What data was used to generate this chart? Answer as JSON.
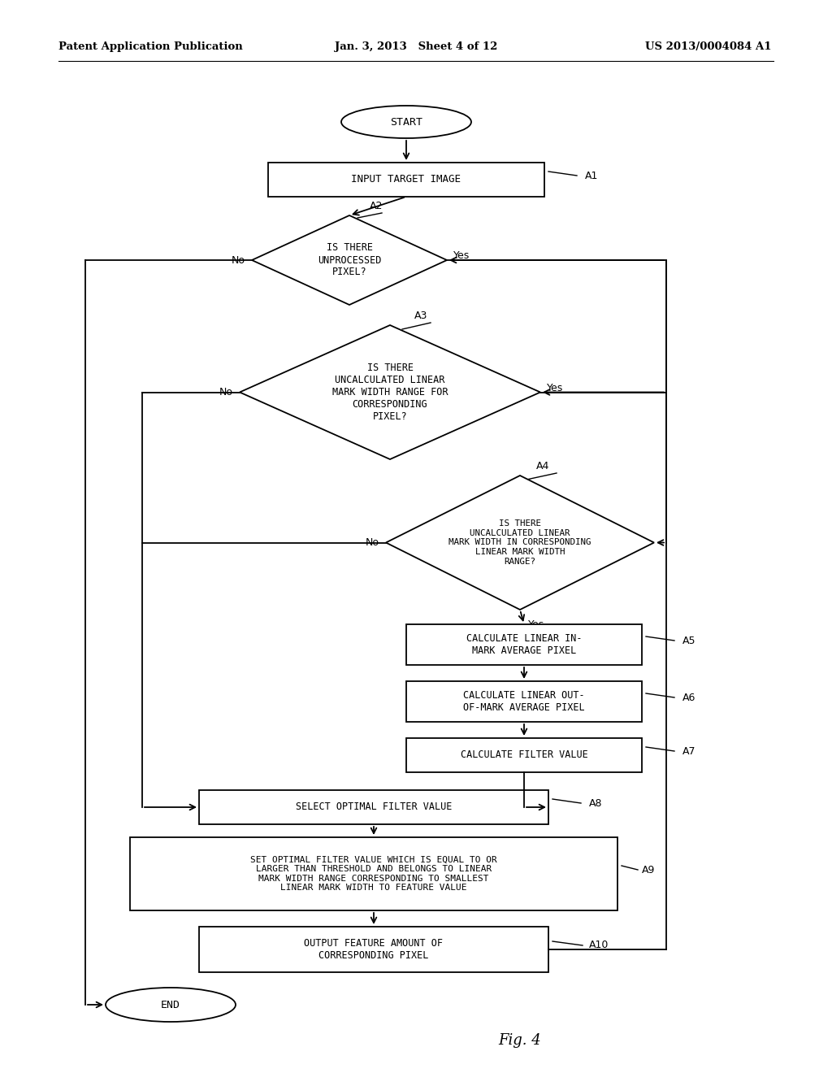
{
  "bg_color": "#ffffff",
  "header_left": "Patent Application Publication",
  "header_mid": "Jan. 3, 2013   Sheet 4 of 12",
  "header_right": "US 2013/0004084 A1",
  "fig_label": "Fig. 4"
}
